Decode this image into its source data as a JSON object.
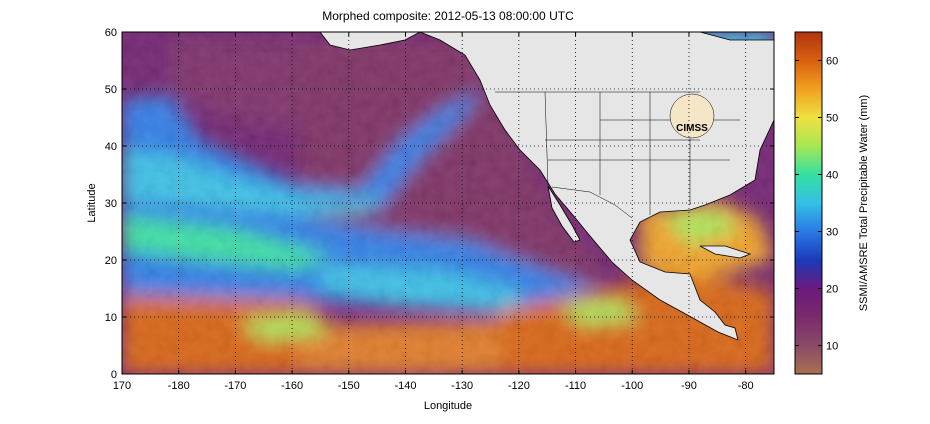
{
  "chart_data": {
    "type": "heatmap",
    "title": "Morphed composite: 2012-05-13 08:00:00 UTC",
    "xlabel": "Longitude",
    "ylabel": "Latitude",
    "xlim": [
      170,
      285
    ],
    "ylim": [
      0,
      60
    ],
    "x_ticks": [
      {
        "value": 170,
        "label": "170"
      },
      {
        "value": 180,
        "label": "-180"
      },
      {
        "value": 190,
        "label": "-170"
      },
      {
        "value": 200,
        "label": "-160"
      },
      {
        "value": 210,
        "label": "-150"
      },
      {
        "value": 220,
        "label": "-140"
      },
      {
        "value": 230,
        "label": "-130"
      },
      {
        "value": 240,
        "label": "-120"
      },
      {
        "value": 250,
        "label": "-110"
      },
      {
        "value": 260,
        "label": "-100"
      },
      {
        "value": 270,
        "label": "-90"
      },
      {
        "value": 280,
        "label": "-80"
      }
    ],
    "y_ticks": [
      {
        "value": 0,
        "label": "0"
      },
      {
        "value": 10,
        "label": "10"
      },
      {
        "value": 20,
        "label": "20"
      },
      {
        "value": 30,
        "label": "30"
      },
      {
        "value": 40,
        "label": "40"
      },
      {
        "value": 50,
        "label": "50"
      },
      {
        "value": 60,
        "label": "60"
      }
    ],
    "grid": true,
    "grid_style": "dotted",
    "land_color": "#e6e6e6",
    "colorbar": {
      "label": "SSMI/AMSRE Total Precipitable Water (mm)",
      "range": [
        5,
        65
      ],
      "ticks": [
        {
          "value": 10,
          "label": "10"
        },
        {
          "value": 20,
          "label": "20"
        },
        {
          "value": 30,
          "label": "30"
        },
        {
          "value": 40,
          "label": "40"
        },
        {
          "value": 50,
          "label": "50"
        },
        {
          "value": 60,
          "label": "60"
        }
      ],
      "colors": [
        {
          "value": 5,
          "color": "#a87050"
        },
        {
          "value": 10,
          "color": "#8a4a68"
        },
        {
          "value": 15,
          "color": "#7a2a6a"
        },
        {
          "value": 20,
          "color": "#6a1a7e"
        },
        {
          "value": 25,
          "color": "#1c3ab8"
        },
        {
          "value": 30,
          "color": "#2a7ae6"
        },
        {
          "value": 35,
          "color": "#34c0e6"
        },
        {
          "value": 40,
          "color": "#34e0a0"
        },
        {
          "value": 45,
          "color": "#a8e654"
        },
        {
          "value": 50,
          "color": "#f0e040"
        },
        {
          "value": 55,
          "color": "#f0a020"
        },
        {
          "value": 60,
          "color": "#d86010"
        },
        {
          "value": 65,
          "color": "#b03410"
        }
      ]
    },
    "logo_text": "CIMSS"
  }
}
